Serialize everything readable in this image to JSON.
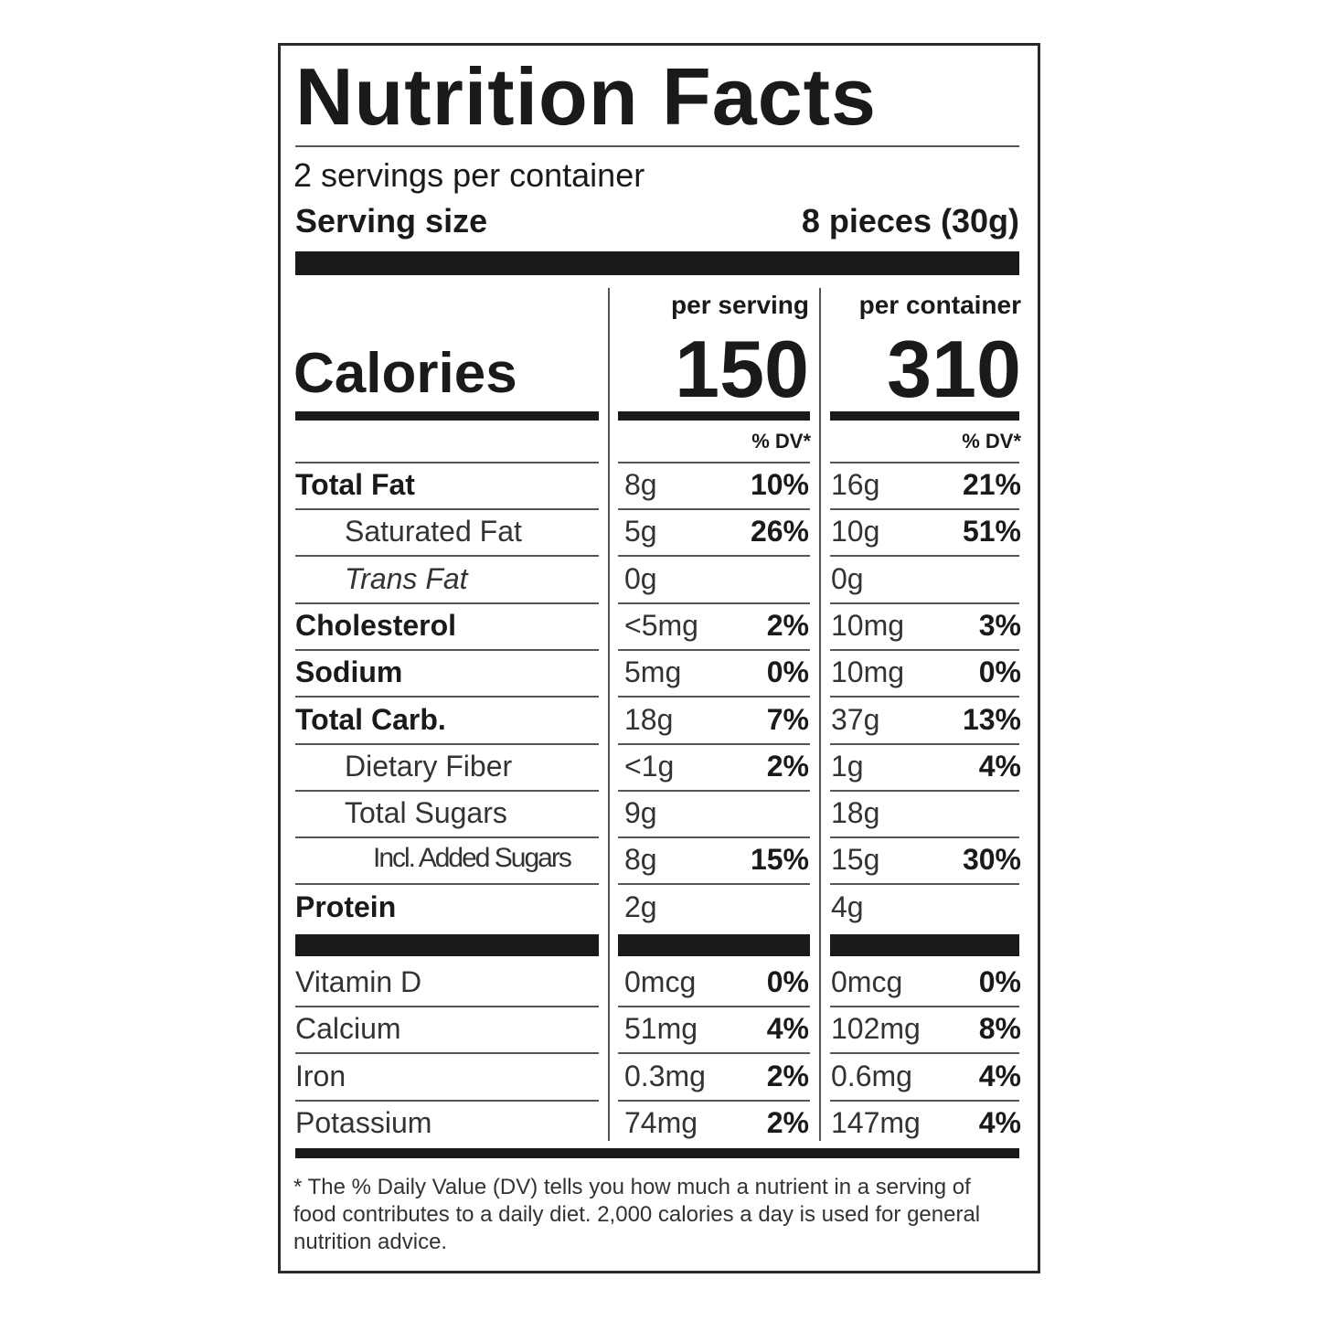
{
  "title": "Nutrition Facts",
  "servings": "2 servings per container",
  "serving_size": {
    "label": "Serving size",
    "value": "8 pieces (30g)"
  },
  "columns": [
    "per serving",
    "per container"
  ],
  "calories": {
    "label": "Calories",
    "values": [
      150,
      310
    ]
  },
  "dv_header": [
    "% DV*",
    "% DV*"
  ],
  "nutrients": [
    [
      "Total Fat",
      "8g",
      "10%",
      "16g",
      "21%"
    ],
    [
      "Saturated Fat",
      "5g",
      "26%",
      "10g",
      "51%"
    ],
    [
      "Trans Fat",
      "0g",
      null,
      "0g",
      null
    ],
    [
      "Cholesterol",
      "<5mg",
      "2%",
      "10mg",
      "3%"
    ],
    [
      "Sodium",
      "5mg",
      "0%",
      "10mg",
      "0%"
    ],
    [
      "Total Carb.",
      "18g",
      "7%",
      "37g",
      "13%"
    ],
    [
      "Dietary Fiber",
      "<1g",
      "2%",
      "1g",
      "4%"
    ],
    [
      "Total Sugars",
      "9g",
      null,
      "18g",
      null
    ],
    [
      "Incl. Added Sugars",
      "8g",
      "15%",
      "15g",
      "30%"
    ],
    [
      "Protein",
      "2g",
      null,
      "4g",
      null
    ]
  ],
  "vitamins": [
    [
      "Vitamin D",
      "0mcg",
      "0%",
      "0mcg",
      "0%"
    ],
    [
      "Calcium",
      "51mg",
      "4%",
      "102mg",
      "8%"
    ],
    [
      "Iron",
      "0.3mg",
      "2%",
      "0.6mg",
      "4%"
    ],
    [
      "Potassium",
      "74mg",
      "2%",
      "147mg",
      "4%"
    ]
  ],
  "footnote": "* The % Daily Value (DV) tells you how much a nutrient in a serving of food contributes to a daily diet. 2,000 calories a day is used for general nutrition advice."
}
